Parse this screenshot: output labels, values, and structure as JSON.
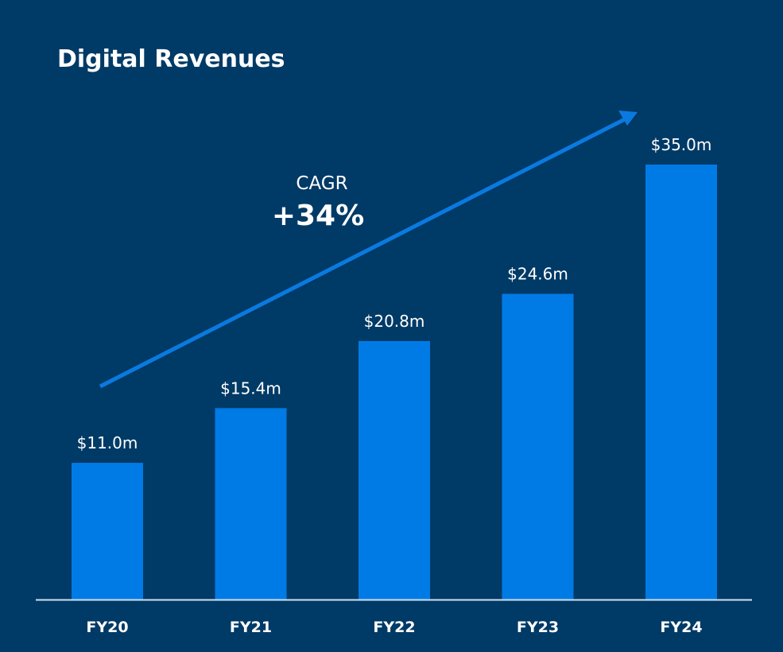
{
  "chart_data": {
    "type": "bar",
    "title": "Digital Revenues",
    "categories": [
      "FY20",
      "FY21",
      "FY22",
      "FY23",
      "FY24"
    ],
    "values": [
      11.0,
      15.4,
      20.8,
      24.6,
      35.0
    ],
    "value_labels": [
      "$11.0m",
      "$15.4m",
      "$20.8m",
      "$24.6m",
      "$35.0m"
    ],
    "xlabel": "",
    "ylabel": "",
    "ylim": [
      0,
      35.0
    ],
    "grid": false,
    "legend": "none",
    "annotation": {
      "label": "CAGR",
      "value": "+34%"
    }
  },
  "colors": {
    "background": "#003a66",
    "bar": "#007be6",
    "trend_arrow": "#0a7ae0",
    "axis": "#cfe0f0",
    "text": "#ffffff"
  }
}
